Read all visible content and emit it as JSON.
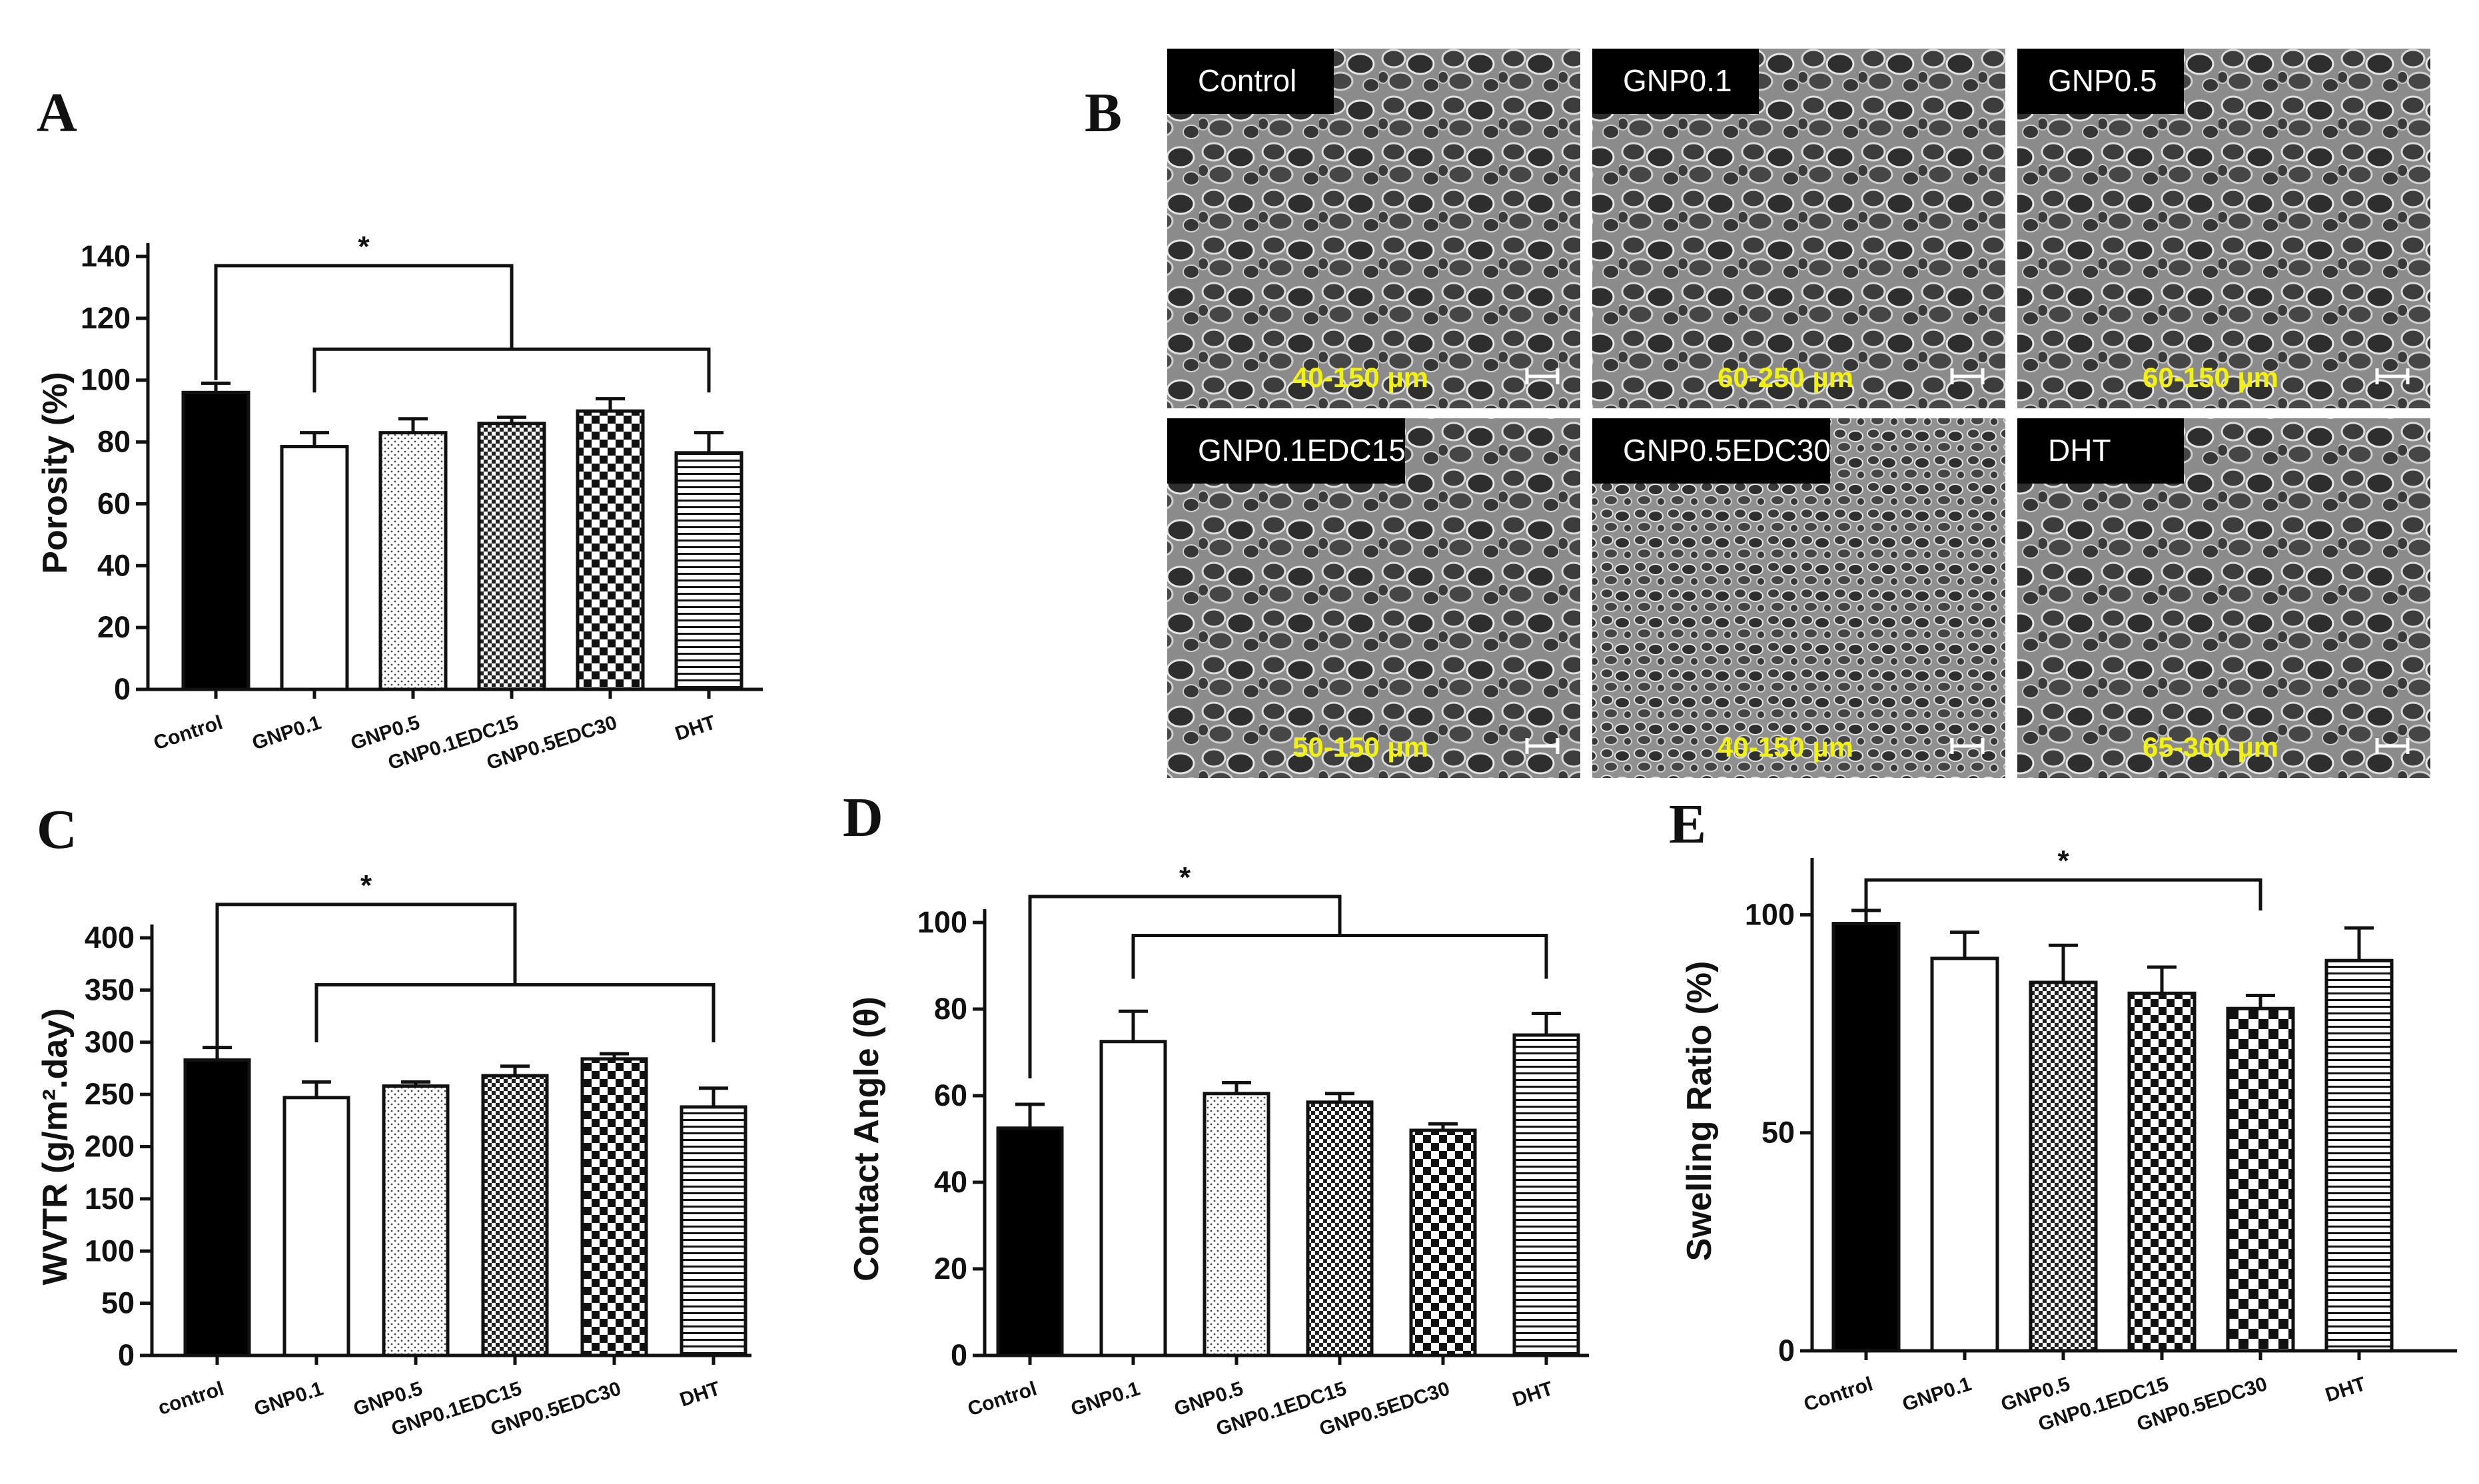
{
  "figure": {
    "panel_letters": [
      "A",
      "B",
      "C",
      "D",
      "E"
    ]
  },
  "chart_data": [
    {
      "panel": "A",
      "type": "bar",
      "ylabel": "Porosity (%)",
      "ylim": [
        0,
        140
      ],
      "yticks": [
        0,
        20,
        40,
        60,
        80,
        100,
        120,
        140
      ],
      "categories": [
        "Control",
        "GNP0.1",
        "GNP0.5",
        "GNP0.1EDC15",
        "GNP0.5EDC30",
        "DHT"
      ],
      "values": [
        96,
        78.5,
        83,
        86,
        90,
        76.5
      ],
      "errors": [
        3,
        4.5,
        4.5,
        2,
        4,
        6.5
      ],
      "patterns": [
        "solid",
        "blank",
        "dots",
        "fine-checker",
        "checker",
        "hlines"
      ],
      "significance": {
        "label": "*",
        "control_index": 0,
        "group_start": 1,
        "group_end": 5,
        "bracket_top": 137,
        "group_bar": 110,
        "left_leg_end": 96,
        "right_leg_end": 96
      }
    },
    {
      "panel": "C",
      "type": "bar",
      "ylabel": "WVTR (g/m².day)",
      "ylim": [
        0,
        400
      ],
      "yticks": [
        0,
        50,
        100,
        150,
        200,
        250,
        300,
        350,
        400
      ],
      "categories": [
        "control",
        "GNP0.1",
        "GNP0.5",
        "GNP0.1EDC15",
        "GNP0.5EDC30",
        "DHT"
      ],
      "values": [
        283,
        247,
        258,
        268,
        284,
        238
      ],
      "errors": [
        12,
        15,
        4,
        9,
        5,
        18
      ],
      "patterns": [
        "solid",
        "blank",
        "dots",
        "fine-checker",
        "checker",
        "hlines"
      ],
      "significance": {
        "label": "*",
        "control_index": 0,
        "group_start": 1,
        "group_end": 5,
        "bracket_top": 432,
        "group_bar": 355,
        "left_leg_end": 300,
        "right_leg_end": 300
      }
    },
    {
      "panel": "D",
      "type": "bar",
      "ylabel": "Contact Angle (θ)",
      "ylim": [
        0,
        100
      ],
      "yticks": [
        0,
        20,
        40,
        60,
        80,
        100
      ],
      "categories": [
        "Control",
        "GNP0.1",
        "GNP0.5",
        "GNP0.1EDC15",
        "GNP0.5EDC30",
        "DHT"
      ],
      "values": [
        52.5,
        72.5,
        60.5,
        58.5,
        52,
        74
      ],
      "errors": [
        5.5,
        7,
        2.5,
        2,
        1.5,
        5
      ],
      "patterns": [
        "solid",
        "blank",
        "dots",
        "fine-checker",
        "checker",
        "hlines"
      ],
      "significance": {
        "label": "*",
        "control_index": 0,
        "group_start": 1,
        "group_end": 5,
        "bracket_top": 106,
        "group_bar": 97,
        "left_leg_end": 87,
        "right_leg_end": 87,
        "from_bottom": true,
        "control_leg_end": 64
      }
    },
    {
      "panel": "E",
      "type": "bar",
      "ylabel": "Swelling Ratio (%)",
      "ylim": [
        0,
        110
      ],
      "yticks": [
        0,
        50,
        100
      ],
      "categories": [
        "Control",
        "GNP0.1",
        "GNP0.5",
        "GNP0.1EDC15",
        "GNP0.5EDC30",
        "DHT"
      ],
      "values": [
        98,
        90,
        84.5,
        82,
        78.5,
        89.5
      ],
      "errors": [
        3,
        6,
        8.5,
        6,
        3,
        7.5
      ],
      "patterns": [
        "solid",
        "blank",
        "fine-checker",
        "checker",
        "coarse-checker",
        "hlines"
      ],
      "significance": {
        "label": "*",
        "pair": [
          0,
          4
        ],
        "bracket_top": 108,
        "leg_end": 101
      }
    }
  ],
  "sem_panel": {
    "panel": "B",
    "tiles": [
      {
        "tag": "Control",
        "range": "40-150 µm",
        "scale_icon": "scale-bar-icon"
      },
      {
        "tag": "GNP0.1",
        "range": "60-250 µm",
        "scale_icon": "scale-bar-icon"
      },
      {
        "tag": "GNP0.5",
        "range": "60-150 µm",
        "scale_icon": "scale-bar-icon"
      },
      {
        "tag": "GNP0.1EDC15",
        "range": "50-150 µm",
        "scale_icon": "scale-bar-icon"
      },
      {
        "tag": "GNP0.5EDC30",
        "range": "40-150 µm",
        "scale_icon": "scale-bar-icon"
      },
      {
        "tag": "DHT",
        "range": "65-300 µm",
        "scale_icon": "scale-bar-icon"
      }
    ],
    "colors": {
      "tag_bg": "#000000",
      "tag_text": "#ffffff",
      "range_text": "#f2f20a"
    }
  },
  "colors": {
    "ink": "#111111",
    "bar_fill_solid": "#000000",
    "bar_fill_blank": "#ffffff"
  }
}
